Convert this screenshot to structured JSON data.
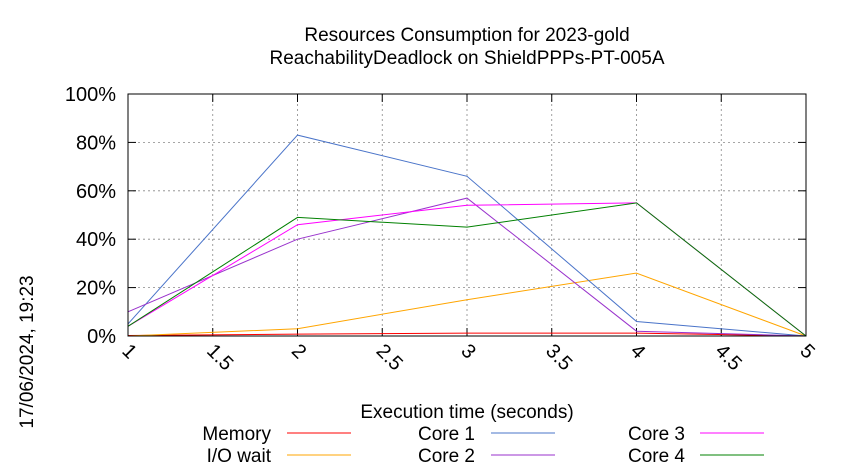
{
  "chart_data": {
    "type": "line",
    "title": [
      "Resources Consumption for 2023-gold",
      "ReachabilityDeadlock on ShieldPPPs-PT-005A"
    ],
    "xlabel": "Execution time (seconds)",
    "ylabel": "",
    "xlim": [
      1,
      5
    ],
    "ylim": [
      0,
      100
    ],
    "xticks": [
      "1",
      "1.5",
      "2",
      "2.5",
      "3",
      "3.5",
      "4",
      "4.5",
      "5"
    ],
    "yticks": [
      "0%",
      "20%",
      "40%",
      "60%",
      "80%",
      "100%"
    ],
    "grid": true,
    "legend_position": "bottom",
    "timestamp": "17/06/2024, 19:23",
    "series": [
      {
        "name": "Memory",
        "color": "#ff0000",
        "x": [
          1,
          2,
          3,
          4,
          5
        ],
        "y": [
          0.2,
          0.8,
          1.2,
          1.2,
          0
        ]
      },
      {
        "name": "I/O wait",
        "color": "#ffa500",
        "x": [
          1,
          2,
          3,
          4,
          5
        ],
        "y": [
          0,
          3,
          15,
          26,
          0
        ]
      },
      {
        "name": "Core 1",
        "color": "#4a74c9",
        "x": [
          1,
          2,
          3,
          4,
          5
        ],
        "y": [
          5,
          83,
          66,
          6,
          0
        ]
      },
      {
        "name": "Core 2",
        "color": "#9932cc",
        "x": [
          1,
          2,
          3,
          4,
          5
        ],
        "y": [
          10,
          40,
          57,
          2,
          0
        ]
      },
      {
        "name": "Core 3",
        "color": "#ff00ff",
        "x": [
          1,
          2,
          3,
          4,
          5
        ],
        "y": [
          4,
          46,
          54,
          55,
          0
        ]
      },
      {
        "name": "Core 4",
        "color": "#008000",
        "x": [
          1,
          2,
          3,
          4,
          5
        ],
        "y": [
          4,
          49,
          45,
          55,
          0
        ]
      }
    ]
  }
}
